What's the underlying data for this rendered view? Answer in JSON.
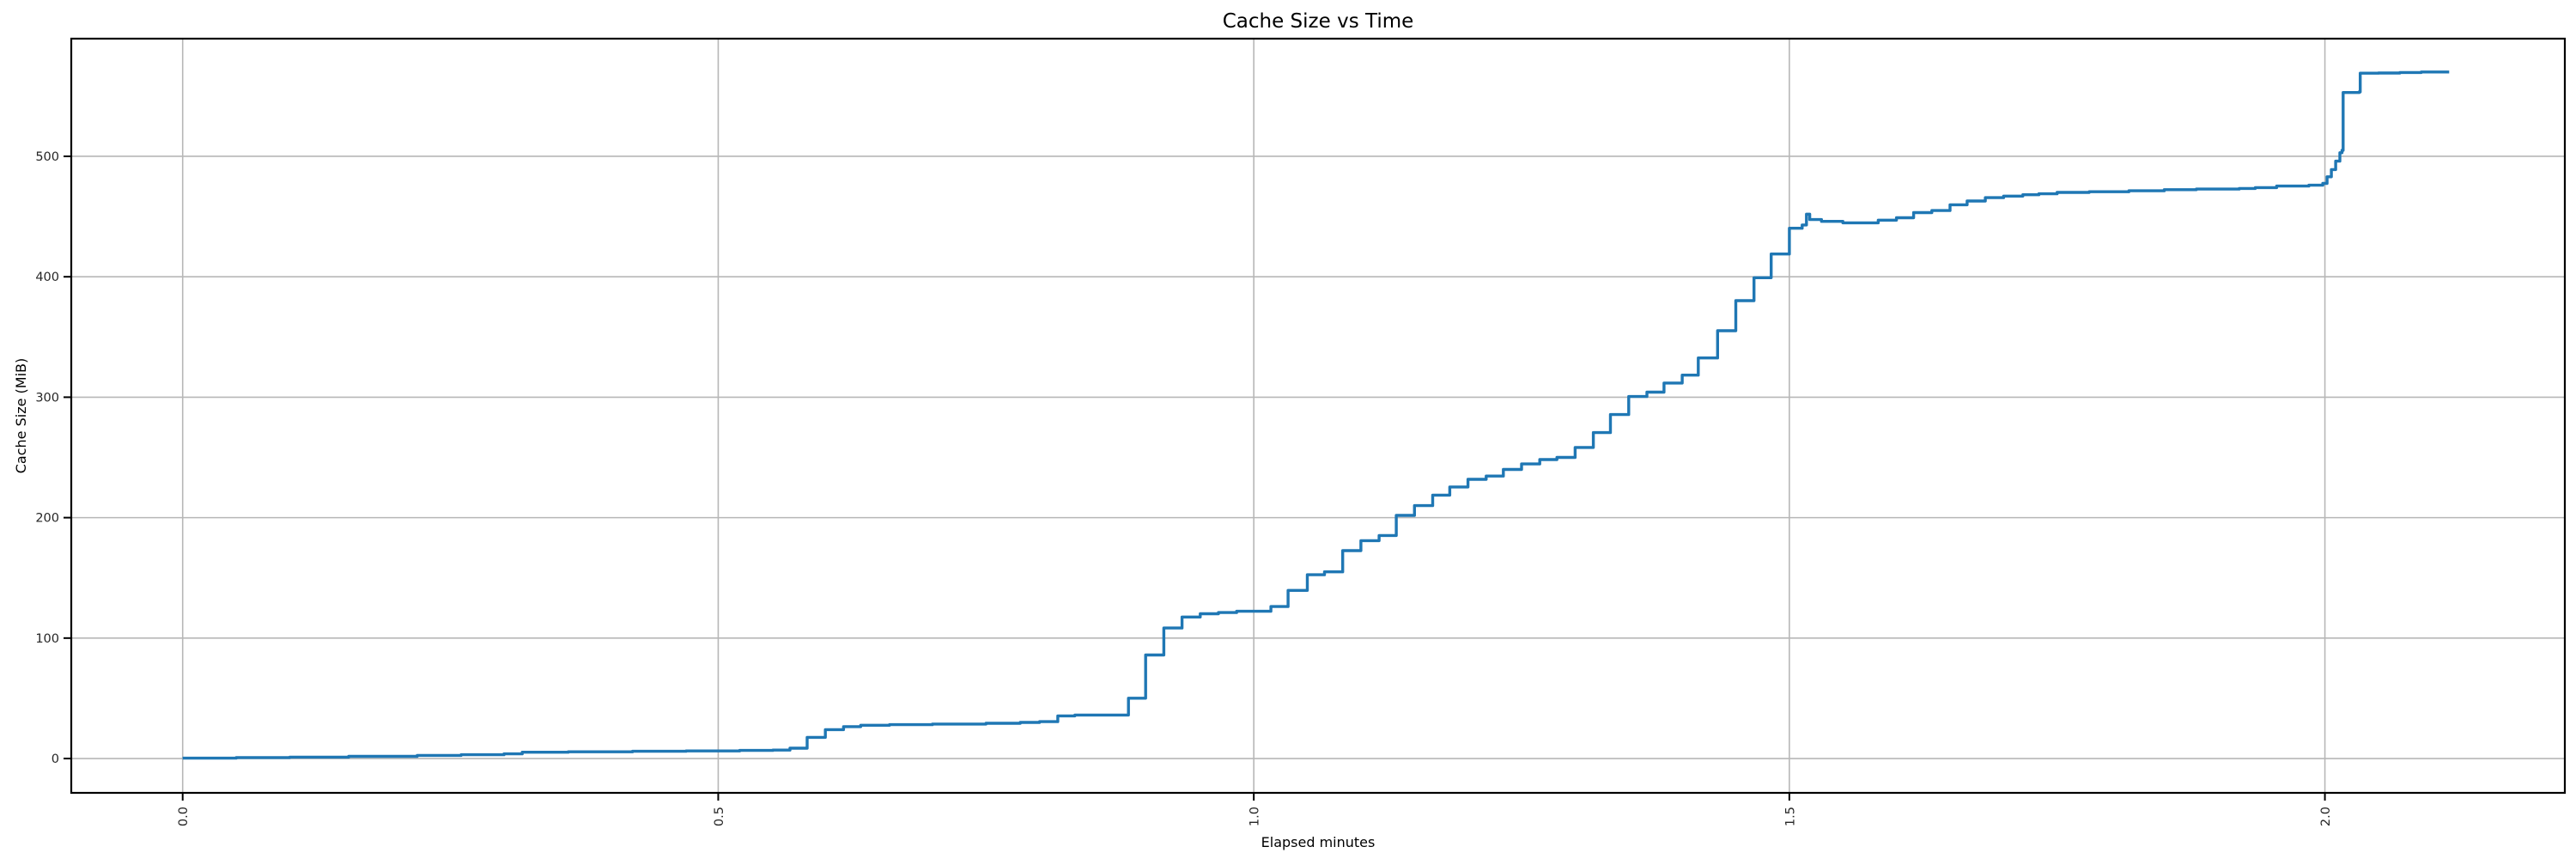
{
  "chart_data": {
    "type": "line",
    "title": "Cache Size vs Time",
    "xlabel": "Elapsed minutes",
    "ylabel": "Cache Size (MiB)",
    "line_color": "#1f77b4",
    "grid": true,
    "grid_color": "#b7b7b7",
    "spine_color": "#000000",
    "background_color": "#ffffff",
    "legend": "none",
    "x_tick_rotation": 90,
    "x_ticks": [
      0.0,
      0.5,
      1.0,
      1.5,
      2.0
    ],
    "x_tick_labels": [
      "0.0",
      "0.5",
      "1.0",
      "1.5",
      "2.0"
    ],
    "y_ticks": [
      0,
      100,
      200,
      300,
      400,
      500
    ],
    "y_tick_labels": [
      "0",
      "100",
      "200",
      "300",
      "400",
      "500"
    ],
    "xlim": [
      -0.104,
      2.224
    ],
    "ylim": [
      -28.5,
      597.7
    ],
    "step_mode": "post",
    "series": [
      {
        "name": "cache-size",
        "points": [
          [
            0.0,
            0.3
          ],
          [
            0.05,
            0.8
          ],
          [
            0.1,
            1.2
          ],
          [
            0.155,
            1.8
          ],
          [
            0.219,
            2.6
          ],
          [
            0.26,
            3.2
          ],
          [
            0.3,
            3.9
          ],
          [
            0.317,
            5.2
          ],
          [
            0.36,
            5.6
          ],
          [
            0.42,
            6.0
          ],
          [
            0.47,
            6.3
          ],
          [
            0.52,
            6.7
          ],
          [
            0.551,
            7.0
          ],
          [
            0.567,
            8.6
          ],
          [
            0.583,
            17.6
          ],
          [
            0.6,
            24.0
          ],
          [
            0.617,
            26.5
          ],
          [
            0.633,
            27.6
          ],
          [
            0.66,
            28.1
          ],
          [
            0.7,
            28.6
          ],
          [
            0.75,
            29.3
          ],
          [
            0.782,
            30.0
          ],
          [
            0.8,
            30.6
          ],
          [
            0.817,
            35.4
          ],
          [
            0.833,
            36.1
          ],
          [
            0.883,
            50.1
          ],
          [
            0.899,
            86.0
          ],
          [
            0.916,
            108.4
          ],
          [
            0.933,
            117.5
          ],
          [
            0.95,
            120.2
          ],
          [
            0.967,
            121.2
          ],
          [
            0.984,
            122.3
          ],
          [
            1.016,
            126.2
          ],
          [
            1.032,
            139.6
          ],
          [
            1.05,
            152.6
          ],
          [
            1.066,
            155.0
          ],
          [
            1.083,
            172.6
          ],
          [
            1.1,
            180.9
          ],
          [
            1.117,
            185.2
          ],
          [
            1.133,
            201.9
          ],
          [
            1.15,
            210.0
          ],
          [
            1.167,
            218.7
          ],
          [
            1.183,
            225.5
          ],
          [
            1.2,
            231.8
          ],
          [
            1.217,
            234.5
          ],
          [
            1.233,
            240.0
          ],
          [
            1.25,
            244.6
          ],
          [
            1.267,
            248.2
          ],
          [
            1.283,
            250.0
          ],
          [
            1.3,
            258.3
          ],
          [
            1.317,
            270.6
          ],
          [
            1.333,
            285.6
          ],
          [
            1.35,
            300.6
          ],
          [
            1.367,
            304.2
          ],
          [
            1.383,
            311.8
          ],
          [
            1.4,
            318.3
          ],
          [
            1.415,
            332.6
          ],
          [
            1.433,
            355.2
          ],
          [
            1.45,
            380.2
          ],
          [
            1.467,
            399.2
          ],
          [
            1.483,
            418.9
          ],
          [
            1.5,
            440.3
          ],
          [
            1.512,
            443.0
          ],
          [
            1.516,
            452.0
          ],
          [
            1.519,
            447.5
          ],
          [
            1.53,
            446.0
          ],
          [
            1.55,
            444.8
          ],
          [
            1.583,
            447.0
          ],
          [
            1.6,
            449.0
          ],
          [
            1.616,
            453.3
          ],
          [
            1.633,
            455.0
          ],
          [
            1.65,
            459.8
          ],
          [
            1.666,
            462.9
          ],
          [
            1.683,
            465.7
          ],
          [
            1.7,
            467.0
          ],
          [
            1.718,
            468.1
          ],
          [
            1.733,
            468.9
          ],
          [
            1.75,
            470.0
          ],
          [
            1.78,
            470.6
          ],
          [
            1.817,
            471.4
          ],
          [
            1.85,
            472.3
          ],
          [
            1.88,
            472.8
          ],
          [
            1.92,
            473.3
          ],
          [
            1.935,
            474.0
          ],
          [
            1.955,
            475.3
          ],
          [
            1.985,
            476.0
          ],
          [
            1.998,
            477.5
          ],
          [
            2.002,
            483.0
          ],
          [
            2.006,
            489.0
          ],
          [
            2.01,
            496.0
          ],
          [
            2.014,
            503.0
          ],
          [
            2.016,
            505.0
          ],
          [
            2.017,
            553.0
          ],
          [
            2.032,
            553.5
          ],
          [
            2.033,
            569.0
          ],
          [
            2.05,
            569.2
          ],
          [
            2.07,
            569.6
          ],
          [
            2.09,
            570.0
          ],
          [
            2.116,
            570.0
          ]
        ]
      }
    ]
  }
}
